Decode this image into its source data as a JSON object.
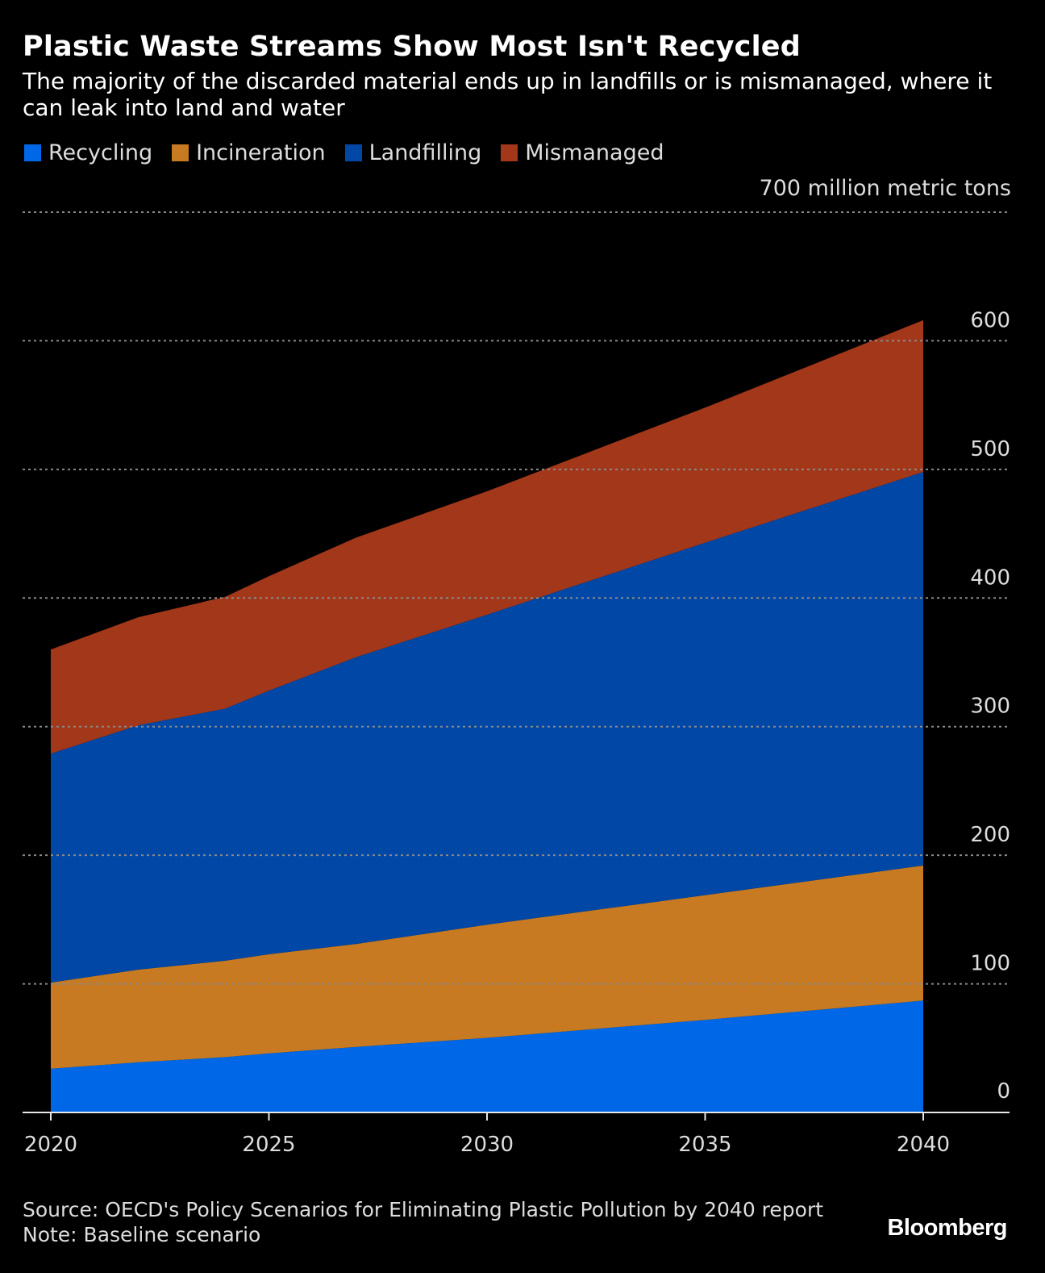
{
  "title": "Plastic Waste Streams Show Most Isn't Recycled",
  "subtitle": "The majority of the discarded material ends up in landfills or is mismanaged, where it can leak into land and water",
  "unit_label": "700 million metric tons",
  "legend": [
    {
      "label": "Recycling",
      "color": "#0068e6"
    },
    {
      "label": "Incineration",
      "color": "#c77a21"
    },
    {
      "label": "Landfilling",
      "color": "#0047a6"
    },
    {
      "label": "Mismanaged",
      "color": "#a3371a"
    }
  ],
  "chart_data": {
    "type": "area",
    "stacked": true,
    "title": "Plastic Waste Streams Show Most Isn't Recycled",
    "ylabel": "700 million metric tons",
    "xlabel": "",
    "ylim": [
      0,
      700
    ],
    "yticks": [
      0,
      100,
      200,
      300,
      400,
      500,
      600
    ],
    "xticks": [
      2020,
      2025,
      2030,
      2035,
      2040
    ],
    "grid": true,
    "legend_position": "top-left",
    "x": [
      2020,
      2022,
      2024,
      2025,
      2027,
      2030,
      2035,
      2040
    ],
    "series": [
      {
        "name": "Recycling",
        "color": "#0068e6",
        "values": [
          34,
          39,
          43,
          46,
          51,
          58,
          72,
          87
        ]
      },
      {
        "name": "Incineration",
        "color": "#c77a21",
        "values": [
          67,
          72,
          75,
          77,
          80,
          88,
          97,
          105
        ]
      },
      {
        "name": "Landfilling",
        "color": "#0047a6",
        "values": [
          178,
          190,
          196,
          205,
          223,
          241,
          274,
          306
        ]
      },
      {
        "name": "Mismanaged",
        "color": "#a3371a",
        "values": [
          81,
          84,
          87,
          89,
          93,
          96,
          105,
          118
        ]
      }
    ]
  },
  "source": "Source: OECD's Policy Scenarios for Eliminating Plastic Pollution by 2040 report",
  "note": "Note: Baseline scenario",
  "brand": "Bloomberg"
}
